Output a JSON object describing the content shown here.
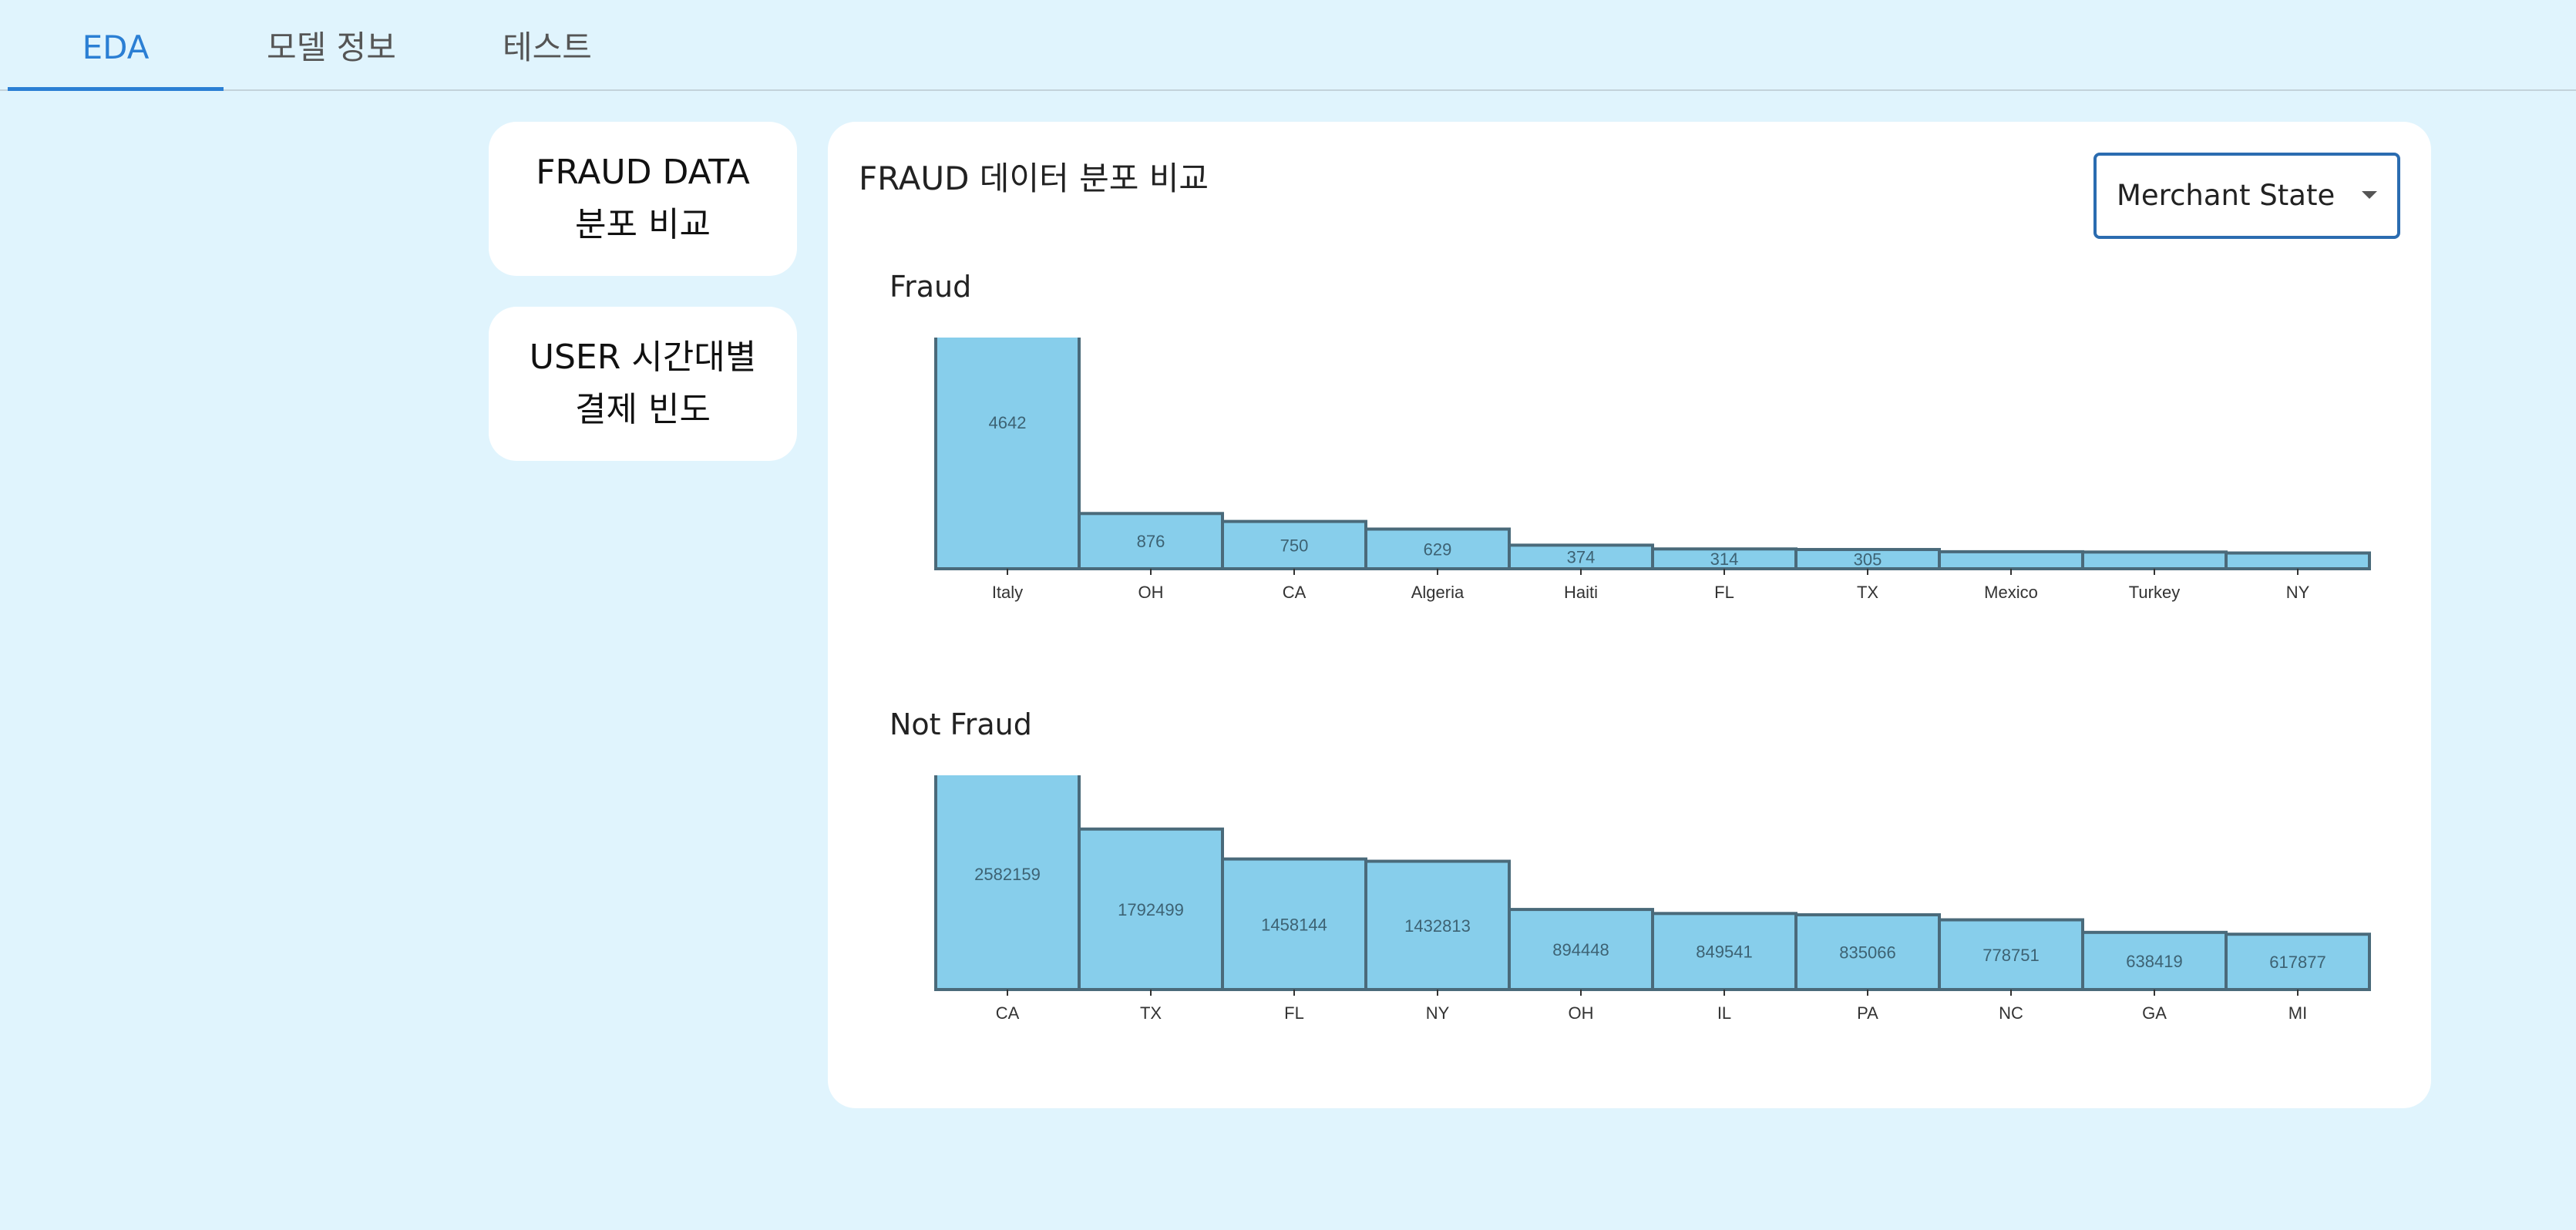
{
  "tabs": [
    {
      "label": "EDA",
      "active": true
    },
    {
      "label": "모델 정보",
      "active": false
    },
    {
      "label": "테스트",
      "active": false
    }
  ],
  "sidebar": [
    {
      "line1": "FRAUD DATA",
      "line2": "분포 비교"
    },
    {
      "line1": "USER 시간대별",
      "line2": "결제 빈도"
    }
  ],
  "panel": {
    "title": "FRAUD 데이터 분포 비교",
    "select_value": "Merchant State"
  },
  "colors": {
    "bar": "#87ceeb",
    "accent": "#2b7fd4"
  },
  "chart_data": [
    {
      "type": "bar",
      "title": "Fraud",
      "categories": [
        "Italy",
        "OH",
        "CA",
        "Algeria",
        "Haiti",
        "FL",
        "TX",
        "Mexico",
        "Turkey",
        "NY"
      ],
      "values": [
        4642,
        876,
        750,
        629,
        374,
        314,
        305,
        270,
        265,
        250
      ],
      "labels": [
        "4642",
        "876",
        "750",
        "629",
        "374",
        "314",
        "305",
        "",
        "",
        ""
      ]
    },
    {
      "type": "bar",
      "title": "Not Fraud",
      "categories": [
        "CA",
        "TX",
        "FL",
        "NY",
        "OH",
        "IL",
        "PA",
        "NC",
        "GA",
        "MI"
      ],
      "values": [
        2582159,
        1792499,
        1458144,
        1432813,
        894448,
        849541,
        835066,
        778751,
        638419,
        617877
      ],
      "labels": [
        "2582159",
        "1792499",
        "1458144",
        "1432813",
        "894448",
        "849541",
        "835066",
        "778751",
        "638419",
        "617877"
      ]
    }
  ]
}
